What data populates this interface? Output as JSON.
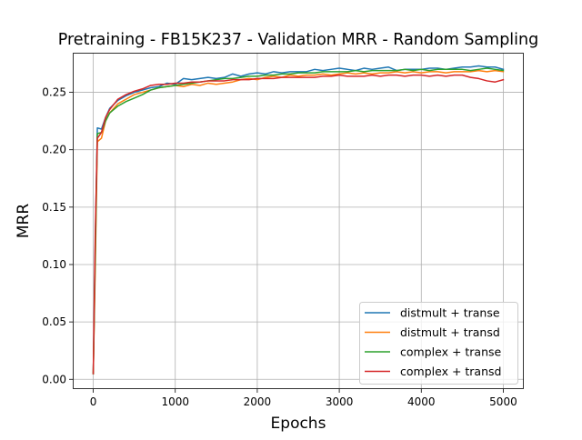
{
  "chart_data": {
    "type": "line",
    "title": "Pretraining - FB15K237 - Validation MRR - Random Sampling",
    "xlabel": "Epochs",
    "ylabel": "MRR",
    "xlim": [
      -250,
      5250
    ],
    "ylim": [
      -0.0085,
      0.2845
    ],
    "xticks": [
      0,
      1000,
      2000,
      3000,
      4000,
      5000
    ],
    "xtick_labels": [
      "0",
      "1000",
      "2000",
      "3000",
      "4000",
      "5000"
    ],
    "yticks": [
      0.0,
      0.05,
      0.1,
      0.15,
      0.2,
      0.25
    ],
    "ytick_labels": [
      "0.00",
      "0.05",
      "0.10",
      "0.15",
      "0.20",
      "0.25"
    ],
    "grid": true,
    "legend_position": "lower-right",
    "series": [
      {
        "name": "distmult + transe",
        "color": "#1f77b4",
        "x": [
          0,
          25,
          50,
          100,
          150,
          200,
          300,
          400,
          500,
          600,
          700,
          800,
          900,
          1000,
          1100,
          1200,
          1300,
          1400,
          1500,
          1600,
          1700,
          1800,
          1900,
          2000,
          2100,
          2200,
          2300,
          2400,
          2500,
          2600,
          2700,
          2800,
          2900,
          3000,
          3100,
          3200,
          3300,
          3400,
          3500,
          3600,
          3700,
          3800,
          3900,
          4000,
          4100,
          4200,
          4300,
          4400,
          4500,
          4600,
          4700,
          4800,
          4900,
          5000
        ],
        "y": [
          0.005,
          0.12,
          0.219,
          0.218,
          0.228,
          0.236,
          0.243,
          0.247,
          0.25,
          0.252,
          0.254,
          0.255,
          0.258,
          0.257,
          0.262,
          0.261,
          0.262,
          0.263,
          0.262,
          0.263,
          0.266,
          0.264,
          0.266,
          0.267,
          0.266,
          0.268,
          0.267,
          0.268,
          0.268,
          0.268,
          0.27,
          0.269,
          0.27,
          0.271,
          0.27,
          0.269,
          0.271,
          0.27,
          0.271,
          0.272,
          0.269,
          0.27,
          0.27,
          0.27,
          0.271,
          0.271,
          0.27,
          0.271,
          0.272,
          0.272,
          0.273,
          0.272,
          0.272,
          0.27
        ]
      },
      {
        "name": "distmult + transd",
        "color": "#ff7f0e",
        "x": [
          0,
          25,
          50,
          100,
          150,
          200,
          300,
          400,
          500,
          600,
          700,
          800,
          900,
          1000,
          1100,
          1200,
          1300,
          1400,
          1500,
          1600,
          1700,
          1800,
          1900,
          2000,
          2100,
          2200,
          2300,
          2400,
          2500,
          2600,
          2700,
          2800,
          2900,
          3000,
          3100,
          3200,
          3300,
          3400,
          3500,
          3600,
          3700,
          3800,
          3900,
          4000,
          4100,
          4200,
          4300,
          4400,
          4500,
          4600,
          4700,
          4800,
          4900,
          5000
        ],
        "y": [
          0.005,
          0.1,
          0.207,
          0.21,
          0.225,
          0.232,
          0.24,
          0.244,
          0.248,
          0.25,
          0.252,
          0.254,
          0.255,
          0.256,
          0.255,
          0.257,
          0.256,
          0.258,
          0.257,
          0.258,
          0.259,
          0.261,
          0.262,
          0.261,
          0.263,
          0.264,
          0.263,
          0.265,
          0.264,
          0.265,
          0.265,
          0.266,
          0.265,
          0.266,
          0.267,
          0.266,
          0.267,
          0.266,
          0.267,
          0.267,
          0.268,
          0.267,
          0.268,
          0.267,
          0.268,
          0.268,
          0.267,
          0.268,
          0.268,
          0.268,
          0.269,
          0.268,
          0.269,
          0.268
        ]
      },
      {
        "name": "complex + transe",
        "color": "#2ca02c",
        "x": [
          0,
          25,
          50,
          100,
          150,
          200,
          300,
          400,
          500,
          600,
          700,
          800,
          900,
          1000,
          1100,
          1200,
          1300,
          1400,
          1500,
          1600,
          1700,
          1800,
          1900,
          2000,
          2100,
          2200,
          2300,
          2400,
          2500,
          2600,
          2700,
          2800,
          2900,
          3000,
          3100,
          3200,
          3300,
          3400,
          3500,
          3600,
          3700,
          3800,
          3900,
          4000,
          4100,
          4200,
          4300,
          4400,
          4500,
          4600,
          4700,
          4800,
          4900,
          5000
        ],
        "y": [
          0.005,
          0.11,
          0.214,
          0.215,
          0.225,
          0.232,
          0.238,
          0.242,
          0.245,
          0.248,
          0.252,
          0.254,
          0.255,
          0.256,
          0.257,
          0.258,
          0.259,
          0.26,
          0.261,
          0.262,
          0.262,
          0.263,
          0.264,
          0.264,
          0.265,
          0.265,
          0.266,
          0.266,
          0.267,
          0.267,
          0.267,
          0.268,
          0.268,
          0.268,
          0.268,
          0.269,
          0.268,
          0.269,
          0.269,
          0.269,
          0.269,
          0.27,
          0.269,
          0.27,
          0.269,
          0.27,
          0.27,
          0.27,
          0.27,
          0.269,
          0.27,
          0.271,
          0.27,
          0.269
        ]
      },
      {
        "name": "complex + transd",
        "color": "#d62728",
        "x": [
          0,
          25,
          50,
          100,
          150,
          200,
          300,
          400,
          500,
          600,
          700,
          800,
          900,
          1000,
          1100,
          1200,
          1300,
          1400,
          1500,
          1600,
          1700,
          1800,
          1900,
          2000,
          2100,
          2200,
          2300,
          2400,
          2500,
          2600,
          2700,
          2800,
          2900,
          3000,
          3100,
          3200,
          3300,
          3400,
          3500,
          3600,
          3700,
          3800,
          3900,
          4000,
          4100,
          4200,
          4300,
          4400,
          4500,
          4600,
          4700,
          4800,
          4900,
          5000
        ],
        "y": [
          0.005,
          0.13,
          0.21,
          0.215,
          0.228,
          0.235,
          0.244,
          0.248,
          0.251,
          0.253,
          0.256,
          0.257,
          0.257,
          0.258,
          0.258,
          0.259,
          0.259,
          0.26,
          0.26,
          0.26,
          0.261,
          0.261,
          0.261,
          0.262,
          0.262,
          0.262,
          0.263,
          0.263,
          0.263,
          0.263,
          0.263,
          0.264,
          0.264,
          0.265,
          0.264,
          0.264,
          0.264,
          0.265,
          0.264,
          0.265,
          0.265,
          0.264,
          0.265,
          0.265,
          0.264,
          0.265,
          0.264,
          0.265,
          0.265,
          0.263,
          0.262,
          0.26,
          0.259,
          0.261
        ]
      }
    ]
  }
}
